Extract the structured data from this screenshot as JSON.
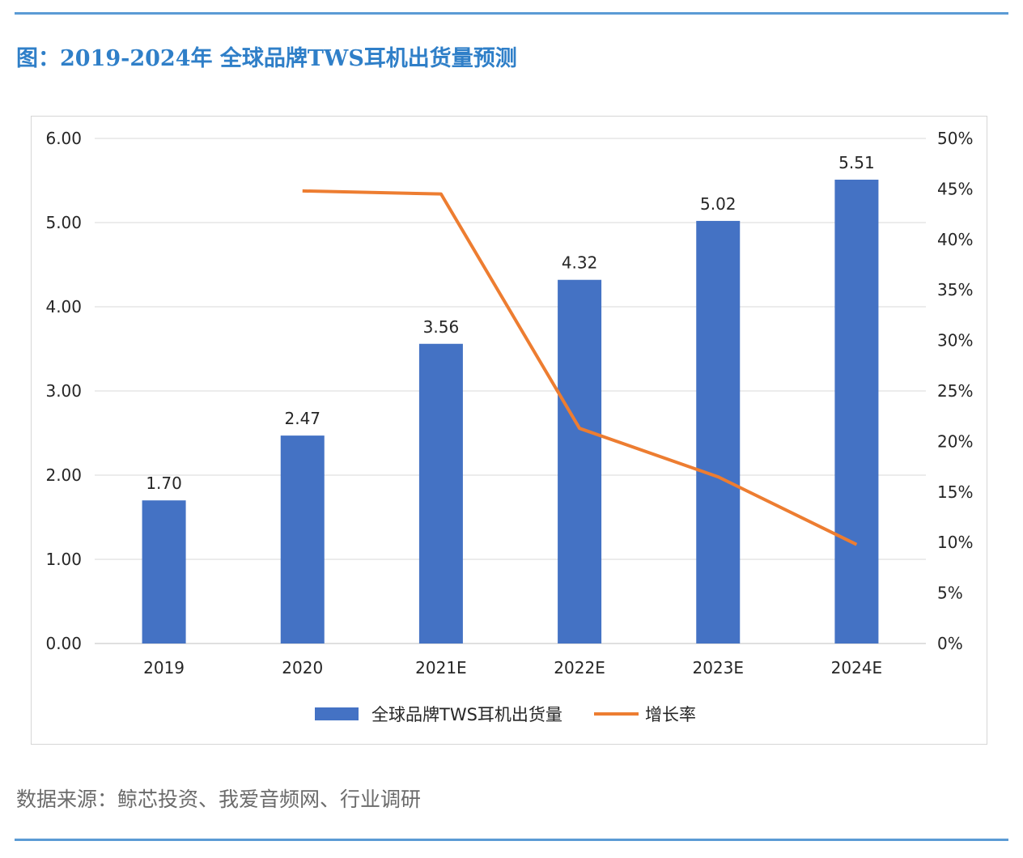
{
  "figure_title": "图：2019-2024年 全球品牌TWS耳机出货量预测",
  "source_note": "数据来源：鲸芯投资、我爱音频网、行业调研",
  "chart_data": {
    "type": "bar",
    "categories": [
      "2019",
      "2020",
      "2021E",
      "2022E",
      "2023E",
      "2024E"
    ],
    "series": [
      {
        "name": "全球品牌TWS耳机出货量",
        "type": "bar",
        "axis": "left",
        "color": "#4472c4",
        "values": [
          1.7,
          2.47,
          3.56,
          4.32,
          5.02,
          5.51
        ],
        "labels": [
          "1.70",
          "2.47",
          "3.56",
          "4.32",
          "5.02",
          "5.51"
        ]
      },
      {
        "name": "增长率",
        "type": "line",
        "axis": "right",
        "color": "#ed7d31",
        "values": [
          null,
          44.8,
          44.5,
          21.3,
          16.5,
          9.8
        ]
      }
    ],
    "y_left": {
      "min": 0,
      "max": 6,
      "ticks": [
        "0.00",
        "1.00",
        "2.00",
        "3.00",
        "4.00",
        "5.00",
        "6.00"
      ]
    },
    "y_right": {
      "min": 0,
      "max": 50,
      "unit": "%",
      "ticks": [
        "0%",
        "5%",
        "10%",
        "15%",
        "20%",
        "25%",
        "30%",
        "35%",
        "40%",
        "45%",
        "50%"
      ]
    },
    "grid": true,
    "legend_position": "bottom"
  }
}
